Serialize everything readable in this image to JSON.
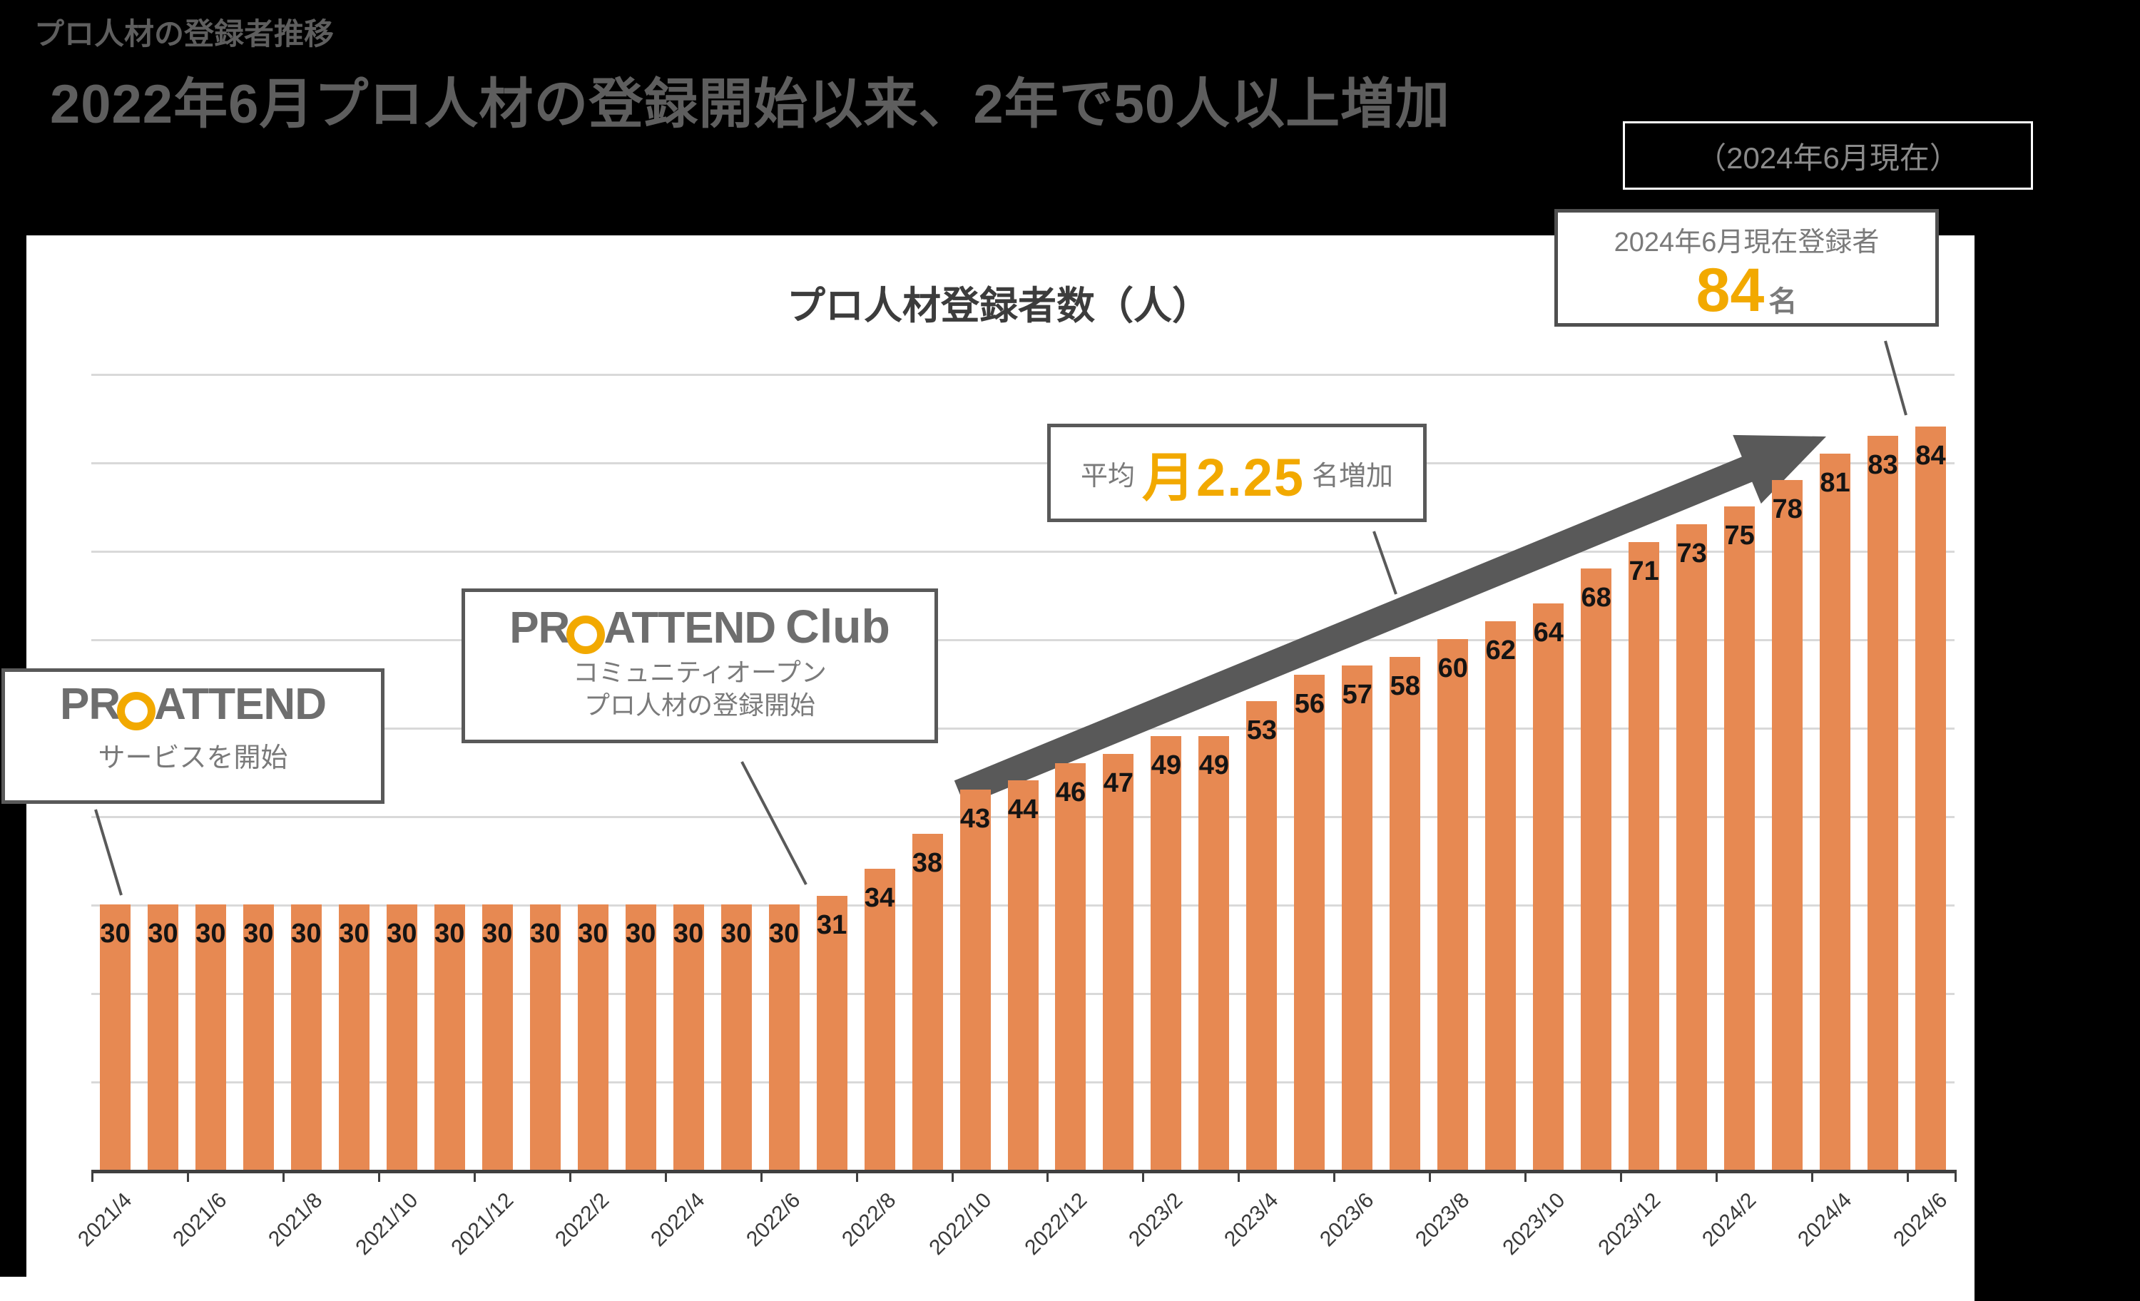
{
  "header": {
    "eyebrow": "プロ人材の登録者推移",
    "title": "2022年6月プロ人材の登録開始以来、2年で50人以上増加",
    "as_of_badge": "（2024年6月現在）"
  },
  "callout": {
    "line1": "2024年6月現在登録者",
    "number": "84",
    "unit": "名"
  },
  "growth_note": {
    "prefix": "平均",
    "highlight": "月2.25",
    "suffix": "名増加"
  },
  "annotations": {
    "service_start": {
      "logo_pr": "PR",
      "logo_attend": "ATTEND",
      "caption": "サービスを開始"
    },
    "club_open": {
      "logo_pr": "PR",
      "logo_attend": "ATTEND",
      "logo_club": "Club",
      "caption_line1": "コミュニティオープン",
      "caption_line2": "プロ人材の登録開始"
    }
  },
  "chart_data": {
    "type": "bar",
    "title": "プロ人材登録者数（人）",
    "x": [
      "2021/4",
      "2021/5",
      "2021/6",
      "2021/7",
      "2021/8",
      "2021/9",
      "2021/10",
      "2021/11",
      "2021/12",
      "2022/1",
      "2022/2",
      "2022/3",
      "2022/4",
      "2022/5",
      "2022/6",
      "2022/7",
      "2022/8",
      "2022/9",
      "2022/10",
      "2022/11",
      "2022/12",
      "2023/1",
      "2023/2",
      "2023/3",
      "2023/4",
      "2023/5",
      "2023/6",
      "2023/7",
      "2023/8",
      "2023/9",
      "2023/10",
      "2023/11",
      "2023/12",
      "2024/1",
      "2024/2",
      "2024/3",
      "2024/4",
      "2024/5",
      "2024/6"
    ],
    "values": [
      30,
      30,
      30,
      30,
      30,
      30,
      30,
      30,
      30,
      30,
      30,
      30,
      30,
      30,
      30,
      31,
      34,
      38,
      43,
      44,
      46,
      47,
      49,
      49,
      53,
      56,
      57,
      58,
      60,
      62,
      64,
      68,
      71,
      73,
      75,
      78,
      81,
      83,
      84
    ],
    "x_tick_labels": [
      "2021/4",
      "2021/6",
      "2021/8",
      "2021/10",
      "2021/12",
      "2022/2",
      "2022/4",
      "2022/6",
      "2022/8",
      "2022/10",
      "2022/12",
      "2023/2",
      "2023/4",
      "2023/6",
      "2023/8",
      "2023/10",
      "2023/12",
      "2024/2",
      "2024/4",
      "2024/6"
    ],
    "ylim": [
      0,
      90
    ],
    "gridline_step": 10,
    "grid": "horizontal, no y-axis labels",
    "legend": "none",
    "bar_color": "#E78952",
    "accent_color": "#F2A900",
    "arrow_color": "#595959"
  }
}
